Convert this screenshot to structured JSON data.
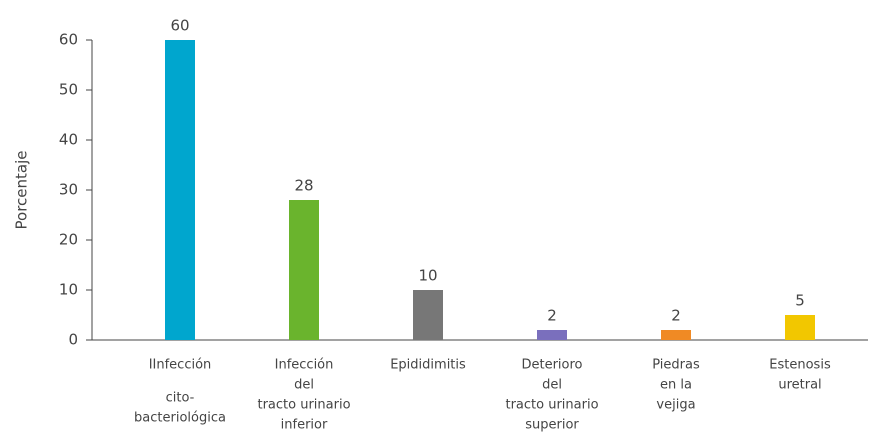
{
  "chart_data": {
    "type": "bar",
    "y_label": "Porcentaje",
    "categories": [
      [
        "IInfección",
        "cito-",
        "bacteriológica"
      ],
      [
        "Infección",
        "del",
        "tracto urinario",
        "inferior"
      ],
      [
        "Epididimitis"
      ],
      [
        "Deterioro",
        "del",
        "tracto urinario",
        "superior"
      ],
      [
        "Piedras",
        "en la",
        "vejiga"
      ],
      [
        "Estenosis",
        "uretral"
      ]
    ],
    "values": [
      60,
      28,
      10,
      2,
      2,
      5
    ],
    "colors": [
      "#00a6ce",
      "#6ab42d",
      "#777777",
      "#7a6fbd",
      "#f08a24",
      "#f2c700"
    ],
    "ylim": [
      0,
      60
    ],
    "yticks": [
      0,
      10,
      20,
      30,
      40,
      50,
      60
    ],
    "grid": false
  }
}
